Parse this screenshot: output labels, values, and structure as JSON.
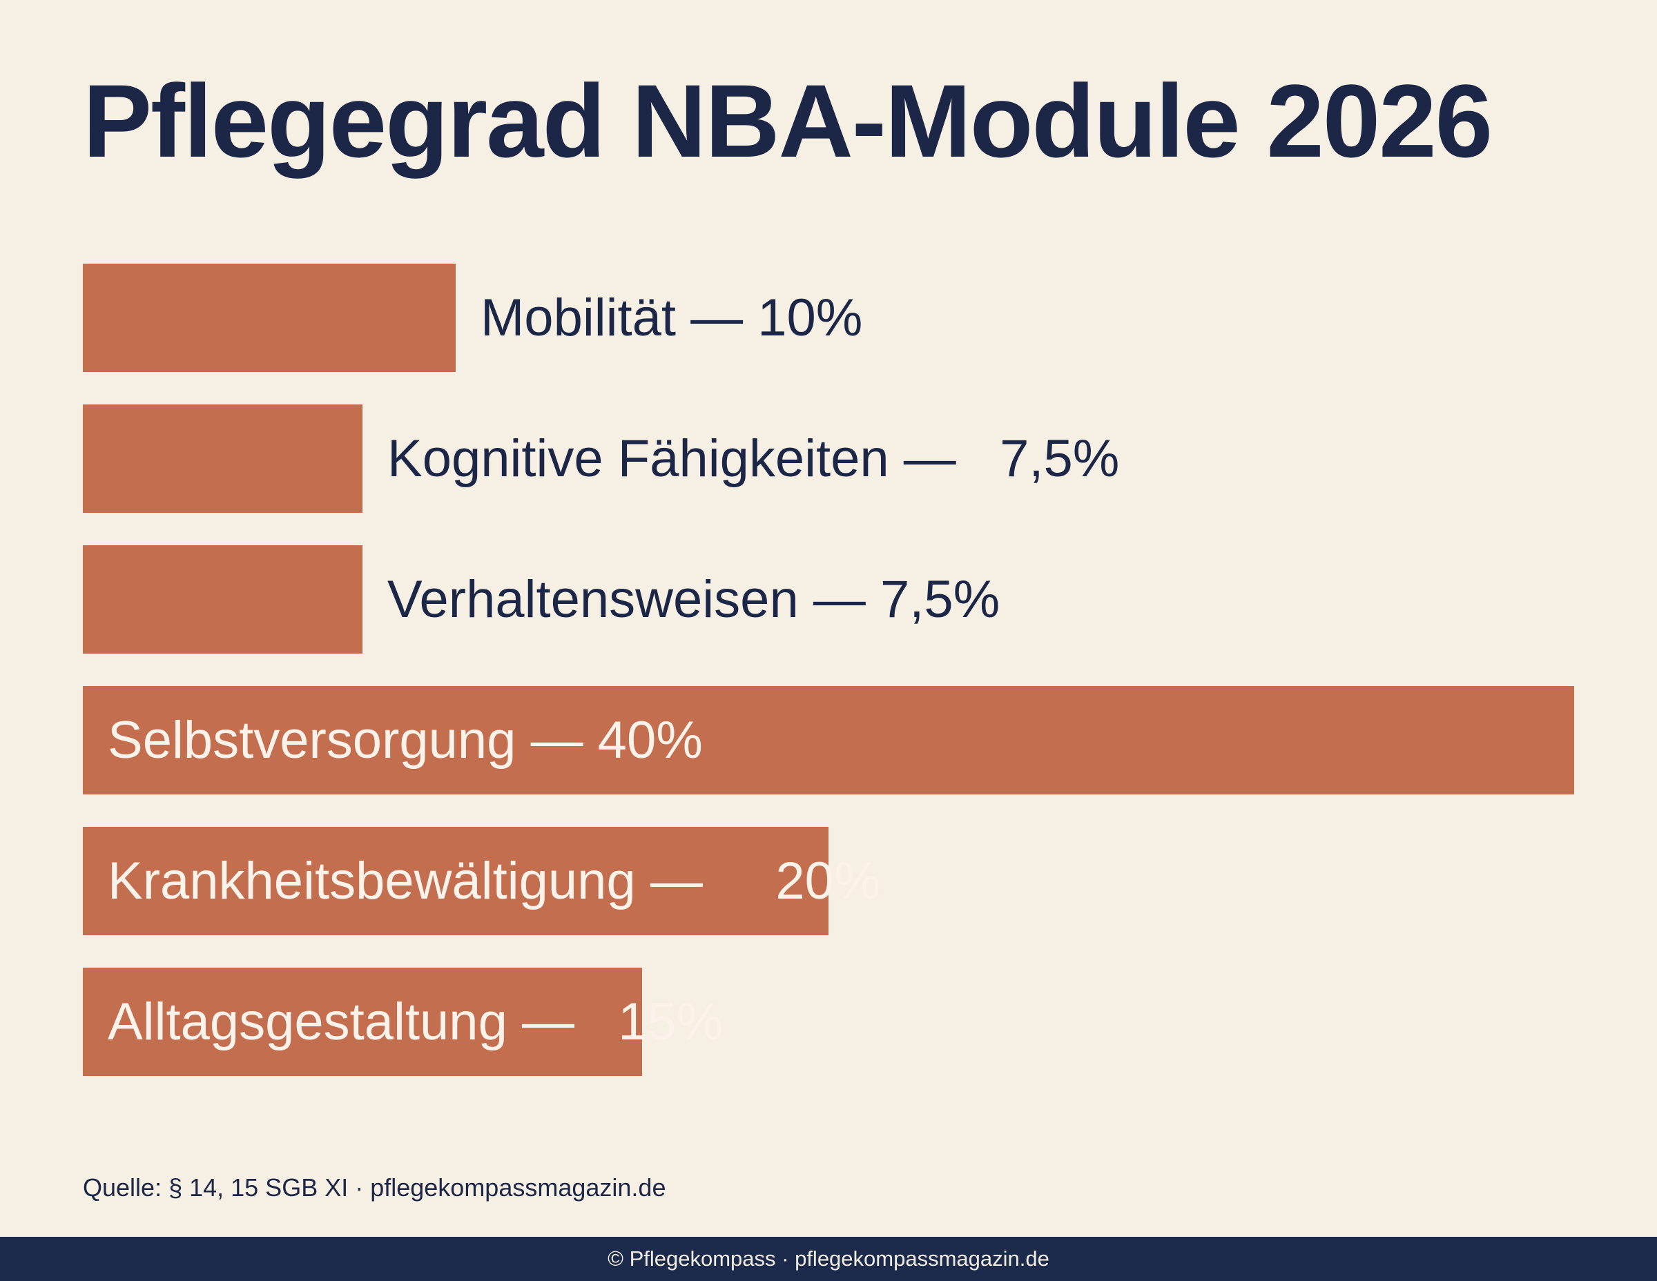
{
  "title": "Pflegegrad NBA-Module 2026",
  "source": "Quelle: § 14, 15 SGB XI · pflegekompassmagazin.de",
  "footer": "© Pflegekompass  ·  pflegekompassmagazin.de",
  "colors": {
    "background": "#f6efe4",
    "bar": "#c46e50",
    "text": "#1c2748",
    "footer_bg": "#1c2a4c"
  },
  "chart_data": {
    "type": "bar",
    "orientation": "horizontal",
    "categories": [
      "Mobilität",
      "Kognitive Fähigkeiten",
      "Verhaltensweisen",
      "Selbstversorgung",
      "Krankheitsbewältigung",
      "Alltagsgestaltung"
    ],
    "values": [
      10,
      7.5,
      7.5,
      40,
      20,
      15
    ],
    "labels": [
      "Mobilität — 10%",
      "Kognitive Fähigkeiten —   7,5%",
      "Verhaltensweisen — 7,5%",
      "Selbstversorgung — 40%",
      "Krankheitsbewältigung —     20%",
      "Alltagsgestaltung —   15%"
    ],
    "unit": "%",
    "xlim": [
      0,
      40
    ],
    "grid": false,
    "legend": "none"
  }
}
